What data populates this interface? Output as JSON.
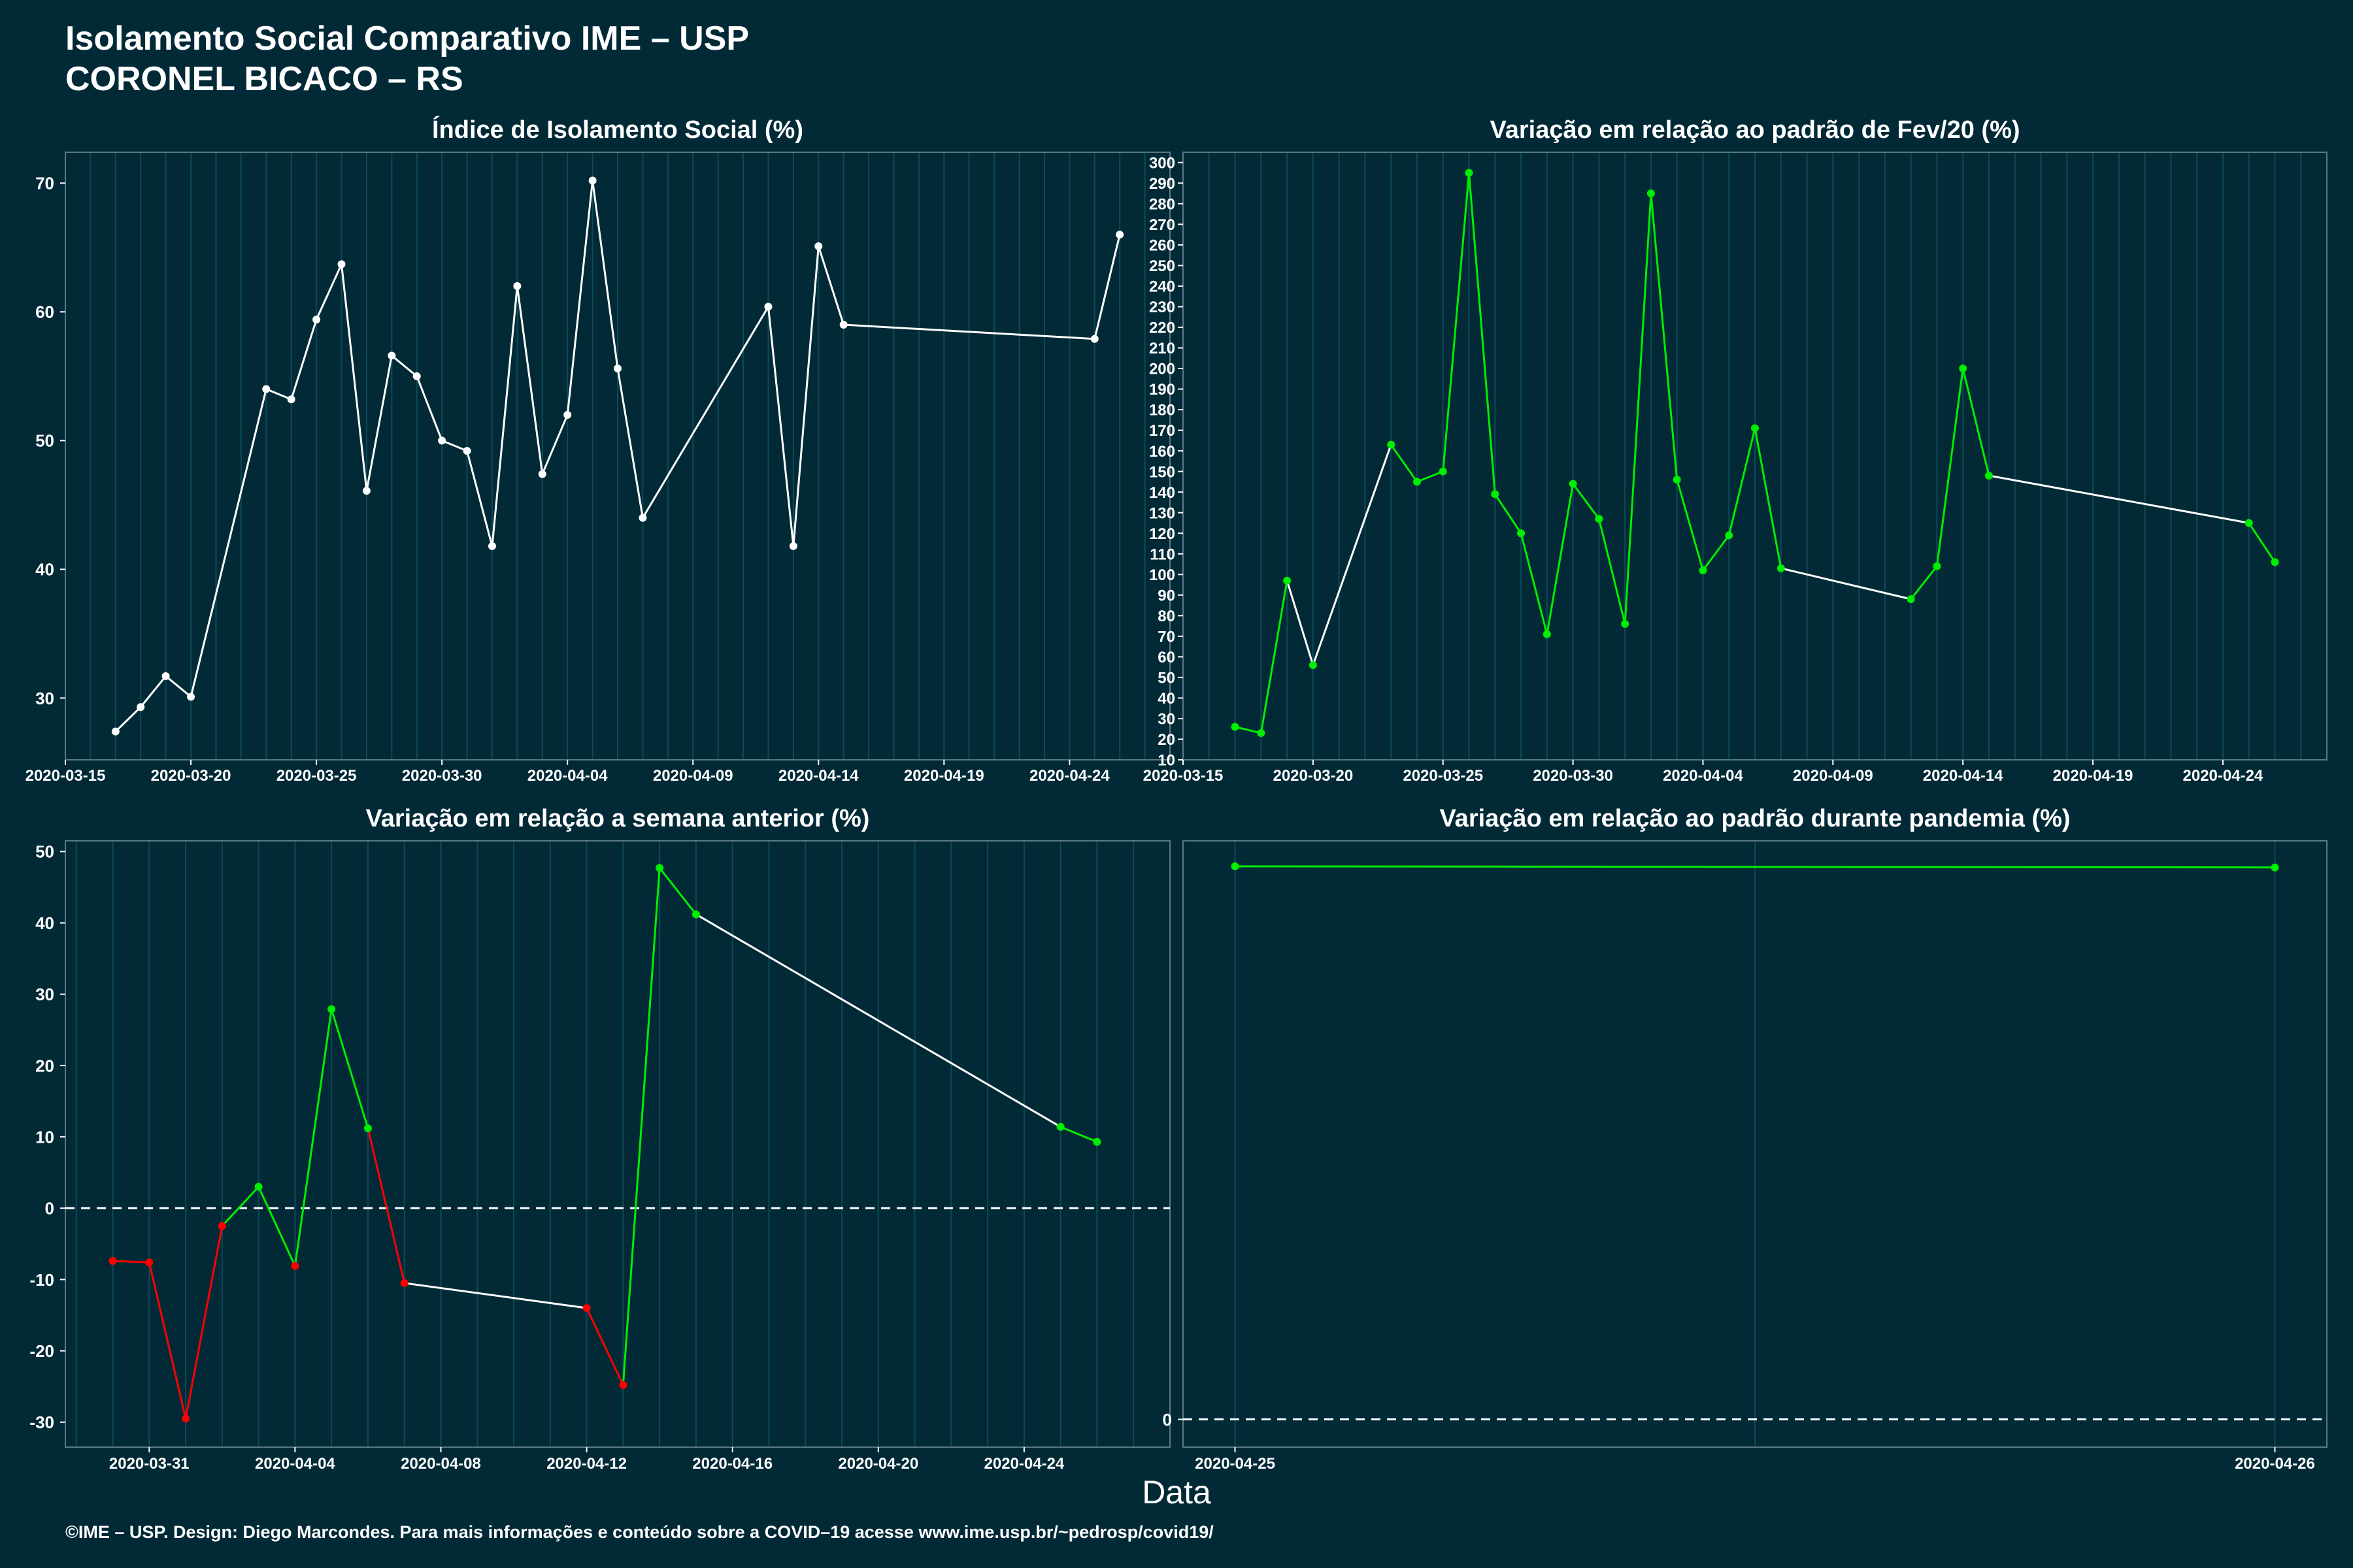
{
  "title_line1": "Isolamento Social Comparativo IME – USP",
  "title_line2": "CORONEL BICACO – RS",
  "xlabel": "Data",
  "footer": "©IME – USP. Design: Diego Marcondes. Para mais informações e conteúdo sobre a COVID–19 acesse www.ime.usp.br/~pedrosp/covid19/",
  "colors": {
    "background": "#012a36",
    "white": "#ffffff",
    "green": "#00ee00",
    "red": "#ff0000",
    "grid": "#0d4a58"
  },
  "chart_data": [
    {
      "type": "line",
      "title": "Índice de Isolamento Social (%)",
      "x": [
        "2020-03-17",
        "2020-03-18",
        "2020-03-19",
        "2020-03-20",
        "2020-03-23",
        "2020-03-24",
        "2020-03-25",
        "2020-03-26",
        "2020-03-27",
        "2020-03-28",
        "2020-03-29",
        "2020-03-30",
        "2020-03-31",
        "2020-04-01",
        "2020-04-02",
        "2020-04-03",
        "2020-04-04",
        "2020-04-05",
        "2020-04-06",
        "2020-04-07",
        "2020-04-12",
        "2020-04-13",
        "2020-04-14",
        "2020-04-15",
        "2020-04-25",
        "2020-04-26"
      ],
      "y": [
        27.4,
        29.3,
        31.7,
        30.1,
        54.0,
        53.2,
        59.4,
        63.7,
        46.1,
        56.6,
        55.0,
        50.0,
        49.2,
        41.8,
        62.0,
        47.4,
        52.0,
        70.2,
        55.6,
        44.0,
        60.4,
        41.8,
        65.1,
        59.0,
        57.9,
        66.0
      ],
      "segment_colors": [
        "white",
        "white",
        "white",
        "white",
        "white",
        "white",
        "white",
        "white",
        "white",
        "white",
        "white",
        "white",
        "white",
        "white",
        "white",
        "white",
        "white",
        "white",
        "white",
        "white",
        "white",
        "white",
        "white",
        "white",
        "white"
      ],
      "point_colors": [
        "white",
        "white",
        "white",
        "white",
        "white",
        "white",
        "white",
        "white",
        "white",
        "white",
        "white",
        "white",
        "white",
        "white",
        "white",
        "white",
        "white",
        "white",
        "white",
        "white",
        "white",
        "white",
        "white",
        "white",
        "white",
        "white"
      ],
      "xlim": [
        "2020-03-15",
        "2020-04-28"
      ],
      "xticks": [
        "2020-03-15",
        "2020-03-20",
        "2020-03-25",
        "2020-03-30",
        "2020-04-04",
        "2020-04-09",
        "2020-04-14",
        "2020-04-19",
        "2020-04-24"
      ],
      "ylim": [
        25.2,
        72.4
      ],
      "yticks": [
        30,
        40,
        50,
        60,
        70
      ],
      "zero_line": false
    },
    {
      "type": "line",
      "title": "Variação em relação ao padrão de Fev/20 (%)",
      "x": [
        "2020-03-17",
        "2020-03-18",
        "2020-03-19",
        "2020-03-20",
        "2020-03-23",
        "2020-03-24",
        "2020-03-25",
        "2020-03-26",
        "2020-03-27",
        "2020-03-28",
        "2020-03-29",
        "2020-03-30",
        "2020-03-31",
        "2020-04-01",
        "2020-04-02",
        "2020-04-03",
        "2020-04-04",
        "2020-04-05",
        "2020-04-06",
        "2020-04-07",
        "2020-04-12",
        "2020-04-13",
        "2020-04-14",
        "2020-04-15",
        "2020-04-25",
        "2020-04-26"
      ],
      "y": [
        26,
        23,
        97,
        56,
        163,
        145,
        150,
        295,
        139,
        120,
        71,
        144,
        127,
        76,
        285,
        146,
        102,
        119,
        171,
        103,
        88,
        104,
        200,
        148,
        125,
        106
      ],
      "segment_colors": [
        "green",
        "green",
        "white",
        "white",
        "green",
        "green",
        "green",
        "green",
        "green",
        "green",
        "green",
        "green",
        "green",
        "green",
        "green",
        "green",
        "green",
        "green",
        "green",
        "white",
        "green",
        "green",
        "green",
        "white",
        "green"
      ],
      "point_colors": [
        "green",
        "green",
        "green",
        "green",
        "green",
        "green",
        "green",
        "green",
        "green",
        "green",
        "green",
        "green",
        "green",
        "green",
        "green",
        "green",
        "green",
        "green",
        "green",
        "green",
        "green",
        "green",
        "green",
        "green",
        "green",
        "green"
      ],
      "xlim": [
        "2020-03-15",
        "2020-04-28"
      ],
      "xticks": [
        "2020-03-15",
        "2020-03-20",
        "2020-03-25",
        "2020-03-30",
        "2020-04-04",
        "2020-04-09",
        "2020-04-14",
        "2020-04-19",
        "2020-04-24"
      ],
      "ylim": [
        10,
        305
      ],
      "yticks": [
        10,
        20,
        30,
        40,
        50,
        60,
        70,
        80,
        90,
        100,
        110,
        120,
        130,
        140,
        150,
        160,
        170,
        180,
        190,
        200,
        210,
        220,
        230,
        240,
        250,
        260,
        270,
        280,
        290,
        300
      ],
      "zero_line": false
    },
    {
      "type": "line",
      "title": "Variação em relação a semana anterior (%)",
      "x": [
        "2020-03-30",
        "2020-03-31",
        "2020-04-01",
        "2020-04-02",
        "2020-04-03",
        "2020-04-04",
        "2020-04-05",
        "2020-04-06",
        "2020-04-07",
        "2020-04-12",
        "2020-04-13",
        "2020-04-14",
        "2020-04-15",
        "2020-04-25",
        "2020-04-26"
      ],
      "y": [
        -7.4,
        -7.6,
        -29.5,
        -2.5,
        3.0,
        -8.1,
        27.9,
        11.2,
        -10.5,
        -14.0,
        -24.8,
        47.7,
        41.2,
        11.4,
        9.3
      ],
      "segment_colors": [
        "red",
        "red",
        "red",
        "green",
        "green",
        "green",
        "green",
        "red",
        "white",
        "red",
        "green",
        "green",
        "white",
        "green"
      ],
      "point_colors": [
        "red",
        "red",
        "red",
        "red",
        "green",
        "red",
        "green",
        "green",
        "red",
        "red",
        "red",
        "green",
        "green",
        "green",
        "green"
      ],
      "xlim": [
        "2020-03-28.7",
        "2020-04-28"
      ],
      "xticks": [
        "2020-03-31",
        "2020-04-04",
        "2020-04-08",
        "2020-04-12",
        "2020-04-16",
        "2020-04-20",
        "2020-04-24"
      ],
      "ylim": [
        -33.5,
        51.5
      ],
      "yticks": [
        -30,
        -20,
        -10,
        0,
        10,
        20,
        30,
        40,
        50
      ],
      "zero_line": true
    },
    {
      "type": "line",
      "title": "Variação em relação ao padrão durante pandemia (%)",
      "x": [
        "2020-04-25",
        "2020-04-26"
      ],
      "y": [
        47.8,
        47.7
      ],
      "segment_colors": [
        "green"
      ],
      "point_colors": [
        "green",
        "green"
      ],
      "xlim": [
        "2020-04-24.95",
        "2020-04-26.05"
      ],
      "xticks": [
        "2020-04-25",
        "2020-04-26"
      ],
      "ylim": [
        -2.4,
        50
      ],
      "yticks": [
        0
      ],
      "zero_line": true
    }
  ]
}
